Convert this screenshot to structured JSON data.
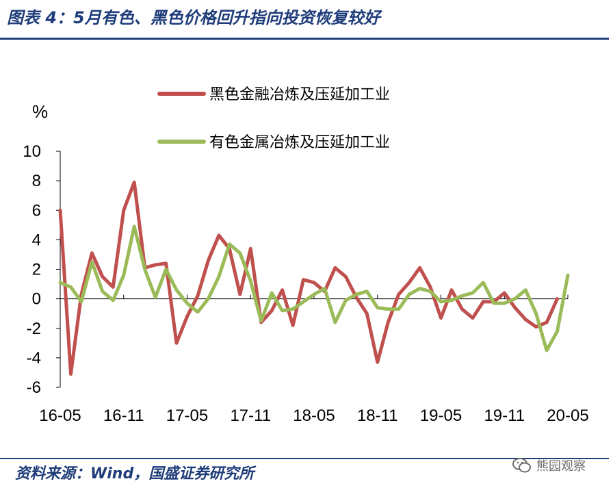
{
  "header": {
    "title": "图表 4：5月有色、黑色价格回升指向投资恢复较好"
  },
  "footer": {
    "source": "资料来源：Wind，国盛证券研究所",
    "watermark": "熊园观察"
  },
  "colors": {
    "brand": "#1f3d7a",
    "series_black": "#c0504d",
    "series_nonferrous": "#9bbb59"
  },
  "chart_data": {
    "type": "line",
    "ylabel": "%",
    "ylim": [
      -6,
      10
    ],
    "yticks": [
      -6,
      -4,
      -2,
      0,
      2,
      4,
      6,
      8,
      10
    ],
    "x_tick_labels": [
      "16-05",
      "16-11",
      "17-05",
      "17-11",
      "18-05",
      "18-11",
      "19-05",
      "19-11",
      "20-05"
    ],
    "x_tick_positions": [
      0,
      6,
      12,
      18,
      24,
      30,
      36,
      42,
      48
    ],
    "x": [
      "16-05",
      "16-06",
      "16-07",
      "16-08",
      "16-09",
      "16-10",
      "16-11",
      "16-12",
      "17-01",
      "17-02",
      "17-03",
      "17-04",
      "17-05",
      "17-06",
      "17-07",
      "17-08",
      "17-09",
      "17-10",
      "17-11",
      "17-12",
      "18-01",
      "18-02",
      "18-03",
      "18-04",
      "18-05",
      "18-06",
      "18-07",
      "18-08",
      "18-09",
      "18-10",
      "18-11",
      "18-12",
      "19-01",
      "19-02",
      "19-03",
      "19-04",
      "19-05",
      "19-06",
      "19-07",
      "19-08",
      "19-09",
      "19-10",
      "19-11",
      "19-12",
      "20-01",
      "20-02",
      "20-03",
      "20-04",
      "20-05"
    ],
    "legend_position": "top-right",
    "series": [
      {
        "name": "黑色金融冶炼及压延加工业",
        "color": "#c0504d",
        "values": [
          6.0,
          -5.1,
          0.3,
          3.1,
          1.5,
          0.8,
          6.0,
          7.9,
          2.1,
          2.3,
          2.4,
          -3.0,
          -1.2,
          0.2,
          2.6,
          4.3,
          3.4,
          0.3,
          3.4,
          -1.6,
          -0.8,
          0.6,
          -1.8,
          1.3,
          1.1,
          0.5,
          2.1,
          1.5,
          0.1,
          -1.0,
          -4.3,
          -1.6,
          0.3,
          1.1,
          2.1,
          0.8,
          -1.3,
          0.6,
          -0.7,
          -1.3,
          -0.2,
          -0.2,
          0.4,
          -0.6,
          -1.4,
          -1.9,
          -1.6,
          0.0,
          null
        ]
      },
      {
        "name": "有色金属冶炼及压延加工业",
        "color": "#9bbb59",
        "values": [
          1.1,
          0.8,
          -0.2,
          2.5,
          0.5,
          -0.1,
          1.6,
          4.9,
          2.0,
          0.1,
          2.0,
          0.6,
          -0.3,
          -0.9,
          0.0,
          1.5,
          3.7,
          3.1,
          1.2,
          -1.5,
          0.4,
          -0.8,
          -0.7,
          -0.2,
          0.3,
          0.7,
          -1.6,
          -0.1,
          0.3,
          0.5,
          -0.6,
          -0.7,
          -0.7,
          0.3,
          0.7,
          0.5,
          -0.2,
          -0.1,
          0.2,
          0.4,
          1.1,
          -0.3,
          -0.3,
          0.0,
          0.6,
          -1.0,
          -3.5,
          -2.2,
          1.6
        ]
      }
    ]
  }
}
